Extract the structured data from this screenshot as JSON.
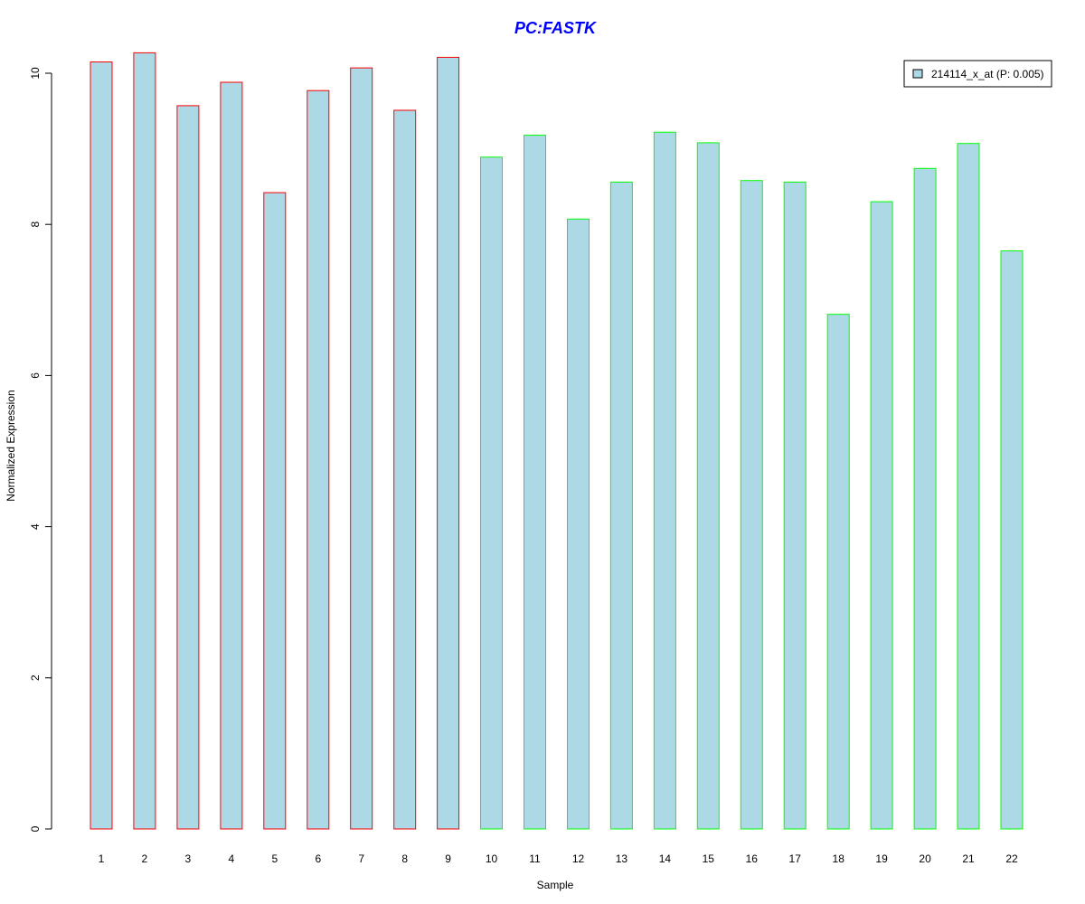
{
  "chart_data": {
    "type": "bar",
    "title": "PC:FASTK",
    "xlabel": "Sample",
    "ylabel": "Normalized Expression",
    "ylim": [
      0,
      10.25
    ],
    "y_ticks": [
      0,
      2,
      4,
      6,
      8,
      10
    ],
    "grid": false,
    "legend_position": "top-right",
    "categories": [
      "1",
      "2",
      "3",
      "4",
      "5",
      "6",
      "7",
      "8",
      "9",
      "10",
      "11",
      "12",
      "13",
      "14",
      "15",
      "16",
      "17",
      "18",
      "19",
      "20",
      "21",
      "22"
    ],
    "series": [
      {
        "name": "214114_x_at (P: 0.005)",
        "values": [
          10.15,
          10.27,
          9.57,
          9.88,
          8.42,
          9.77,
          10.07,
          9.51,
          10.21,
          8.89,
          9.18,
          8.07,
          8.56,
          9.22,
          9.08,
          8.58,
          8.56,
          6.81,
          8.3,
          8.74,
          9.07,
          7.65
        ]
      }
    ],
    "group_border_colors": [
      "#ff0000",
      "#ff0000",
      "#ff0000",
      "#ff0000",
      "#ff0000",
      "#ff0000",
      "#ff0000",
      "#ff0000",
      "#ff0000",
      "#00ff00",
      "#00ff00",
      "#00ff00",
      "#00ff00",
      "#00ff00",
      "#00ff00",
      "#00ff00",
      "#00ff00",
      "#00ff00",
      "#00ff00",
      "#00ff00",
      "#00ff00",
      "#00ff00"
    ],
    "fill_color": "#add8e6",
    "title_color": "#0000ff"
  }
}
